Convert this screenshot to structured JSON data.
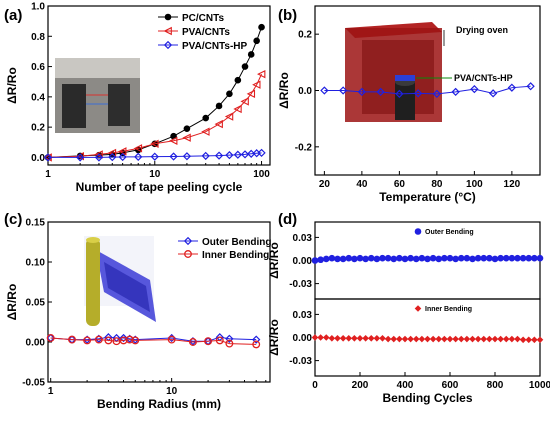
{
  "panels": [
    {
      "label": "(a)",
      "chart_data": {
        "type": "line",
        "xlabel": "Number of tape peeling cycle",
        "ylabel": "ΔR/Ro",
        "xscale": "log",
        "xlim": [
          1,
          120
        ],
        "ylim": [
          -0.05,
          1.0
        ],
        "xticks": [
          "1",
          "10",
          "100"
        ],
        "yticks": [
          "0.0",
          "0.2",
          "0.4",
          "0.6",
          "0.8",
          "1.0"
        ],
        "legend": "top-right",
        "series": [
          {
            "name": "PC/CNTs",
            "color": "#000000",
            "marker": "circle-filled",
            "x": [
              1,
              2,
              3,
              4,
              5,
              7,
              10,
              15,
              20,
              30,
              40,
              50,
              60,
              70,
              80,
              90,
              100
            ],
            "y": [
              0,
              0.01,
              0.015,
              0.02,
              0.03,
              0.05,
              0.09,
              0.14,
              0.19,
              0.26,
              0.34,
              0.42,
              0.51,
              0.6,
              0.68,
              0.77,
              0.86
            ]
          },
          {
            "name": "PVA/CNTs",
            "color": "#e02020",
            "marker": "triangle-open",
            "x": [
              1,
              2,
              3,
              4,
              5,
              7,
              10,
              15,
              20,
              30,
              40,
              50,
              60,
              70,
              80,
              90,
              100
            ],
            "y": [
              0,
              0.008,
              0.02,
              0.03,
              0.04,
              0.06,
              0.09,
              0.11,
              0.13,
              0.17,
              0.22,
              0.27,
              0.32,
              0.37,
              0.42,
              0.48,
              0.55
            ]
          },
          {
            "name": "PVA/CNTs-HP",
            "color": "#2020e0",
            "marker": "diamond-open",
            "x": [
              1,
              2,
              3,
              4,
              5,
              7,
              10,
              15,
              20,
              30,
              40,
              50,
              60,
              70,
              80,
              90,
              100
            ],
            "y": [
              0,
              0,
              0,
              0.002,
              0.003,
              0.004,
              0.005,
              0.006,
              0.008,
              0.01,
              0.012,
              0.015,
              0.018,
              0.02,
              0.024,
              0.028,
              0.03
            ]
          }
        ]
      }
    },
    {
      "label": "(b)",
      "annotations": [
        "Drying oven",
        "PVA/CNTs-HP"
      ],
      "chart_data": {
        "type": "line",
        "xlabel": "Temperature (°C)",
        "ylabel": "ΔR/Ro",
        "xlim": [
          15,
          135
        ],
        "ylim": [
          -0.3,
          0.3
        ],
        "xticks": [
          "20",
          "40",
          "60",
          "80",
          "100",
          "120"
        ],
        "yticks": [
          "-0.2",
          "0.0",
          "0.2"
        ],
        "series": [
          {
            "name": "",
            "color": "#2020e0",
            "marker": "diamond-open",
            "x": [
              20,
              30,
              40,
              50,
              60,
              70,
              80,
              90,
              100,
              110,
              120,
              130
            ],
            "y": [
              0,
              0,
              -0.005,
              -0.005,
              -0.012,
              -0.01,
              -0.012,
              -0.005,
              0.005,
              -0.01,
              0.01,
              0.015
            ]
          }
        ]
      }
    },
    {
      "label": "(c)",
      "chart_data": {
        "type": "line",
        "xlabel": "Bending Radius (mm)",
        "ylabel": "ΔR/Ro",
        "xscale": "log",
        "xlim": [
          0.95,
          65
        ],
        "ylim": [
          -0.05,
          0.15
        ],
        "xticks": [
          "1",
          "10"
        ],
        "yticks": [
          "-0.05",
          "0.00",
          "0.05",
          "0.10",
          "0.15"
        ],
        "legend": "top-right",
        "series": [
          {
            "name": "Outer Bending",
            "color": "#2020e0",
            "marker": "diamond-open",
            "x": [
              1,
              1.5,
              2,
              2.5,
              3,
              3.5,
              4,
              4.5,
              5,
              10,
              15,
              20,
              25,
              30,
              50
            ],
            "y": [
              0.005,
              0.003,
              0.003,
              0.004,
              0.006,
              0.005,
              0.005,
              0.004,
              0.003,
              0.005,
              0.001,
              0.001,
              0.006,
              0.004,
              0.003
            ]
          },
          {
            "name": "Inner Bending",
            "color": "#e02020",
            "marker": "circle-open",
            "x": [
              1,
              1.5,
              2,
              2.5,
              3,
              3.5,
              4,
              4.5,
              5,
              10,
              15,
              20,
              25,
              30,
              50
            ],
            "y": [
              0.005,
              0.003,
              0.002,
              0.003,
              0.002,
              0.001,
              0.002,
              0.003,
              0.002,
              0.003,
              0,
              0.001,
              0.002,
              -0.002,
              -0.003
            ]
          }
        ]
      }
    },
    {
      "label": "(d)",
      "chart_data": {
        "type": "scatter",
        "xlabel": "Bending Cycles",
        "ylabel": "ΔR/Ro",
        "xlim": [
          0,
          1000
        ],
        "xticks": [
          "0",
          "200",
          "400",
          "600",
          "800",
          "1000"
        ],
        "subplots": [
          {
            "name": "Outer Bending",
            "color": "#2020e0",
            "marker": "circle-filled",
            "ylim": [
              -0.05,
              0.05
            ],
            "yticks": [
              "0.03",
              "0.00",
              "-0.03"
            ],
            "x": [
              0,
              25,
              50,
              75,
              100,
              125,
              150,
              175,
              200,
              225,
              250,
              275,
              300,
              325,
              350,
              375,
              400,
              425,
              450,
              475,
              500,
              525,
              550,
              575,
              600,
              625,
              650,
              675,
              700,
              725,
              750,
              775,
              800,
              825,
              850,
              875,
              900,
              925,
              950,
              975,
              1000
            ],
            "y": [
              0,
              0.001,
              0.002,
              0.003,
              0.002,
              0.002,
              0.003,
              0.002,
              0.003,
              0.002,
              0.003,
              0.002,
              0.003,
              0.003,
              0.002,
              0.003,
              0.002,
              0.003,
              0.002,
              0.003,
              0.002,
              0.003,
              0.002,
              0.003,
              0.003,
              0.002,
              0.003,
              0.003,
              0.002,
              0.003,
              0.003,
              0.003,
              0.002,
              0.003,
              0.003,
              0.003,
              0.003,
              0.003,
              0.003,
              0.003,
              0.003
            ]
          },
          {
            "name": "Inner Bending",
            "color": "#e02020",
            "marker": "diamond-filled",
            "ylim": [
              -0.05,
              0.05
            ],
            "yticks": [
              "0.03",
              "0.00",
              "-0.03"
            ],
            "x": [
              0,
              25,
              50,
              75,
              100,
              125,
              150,
              175,
              200,
              225,
              250,
              275,
              300,
              325,
              350,
              375,
              400,
              425,
              450,
              475,
              500,
              525,
              550,
              575,
              600,
              625,
              650,
              675,
              700,
              725,
              750,
              775,
              800,
              825,
              850,
              875,
              900,
              925,
              950,
              975,
              1000
            ],
            "y": [
              0,
              0,
              0,
              -0.001,
              -0.001,
              -0.001,
              -0.001,
              -0.001,
              -0.001,
              -0.001,
              -0.001,
              -0.001,
              -0.001,
              -0.002,
              -0.002,
              -0.002,
              -0.002,
              -0.002,
              -0.002,
              -0.002,
              -0.002,
              -0.002,
              -0.002,
              -0.002,
              -0.002,
              -0.002,
              -0.002,
              -0.002,
              -0.002,
              -0.002,
              -0.002,
              -0.002,
              -0.002,
              -0.002,
              -0.002,
              -0.002,
              -0.002,
              -0.003,
              -0.003,
              -0.003,
              -0.003
            ]
          }
        ]
      }
    }
  ]
}
